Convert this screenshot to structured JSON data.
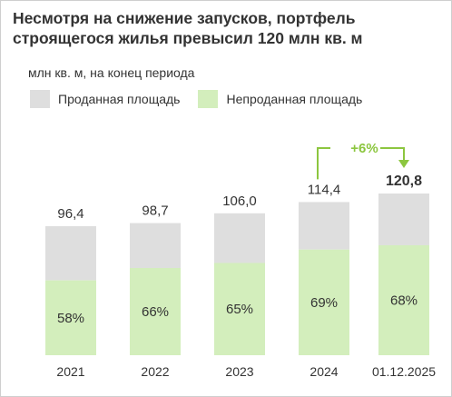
{
  "title": "Несмотря на снижение запусков, портфель строящегося жилья превысил 120 млн кв. м",
  "subtitle": "млн кв. м, на конец периода",
  "colors": {
    "sold": "#dedede",
    "unsold": "#d3eebc",
    "accent": "#8cc63f"
  },
  "growth_label": "+6%",
  "chart_data": {
    "type": "bar",
    "stacked": true,
    "categories": [
      "2021",
      "2022",
      "2023",
      "2024",
      "01.12.2025"
    ],
    "totals": [
      96.4,
      98.7,
      106.0,
      114.4,
      120.8
    ],
    "total_labels": [
      "96,4",
      "98,7",
      "106,0",
      "114,4",
      "120,8"
    ],
    "unsold_share": [
      0.58,
      0.66,
      0.65,
      0.69,
      0.68
    ],
    "unsold_share_labels": [
      "58%",
      "66%",
      "65%",
      "69%",
      "68%"
    ],
    "highlight_index": 4,
    "series": [
      {
        "name": "Проданная площадь"
      },
      {
        "name": "Непроданная площадь"
      }
    ],
    "ylim": [
      0,
      120.8
    ]
  }
}
